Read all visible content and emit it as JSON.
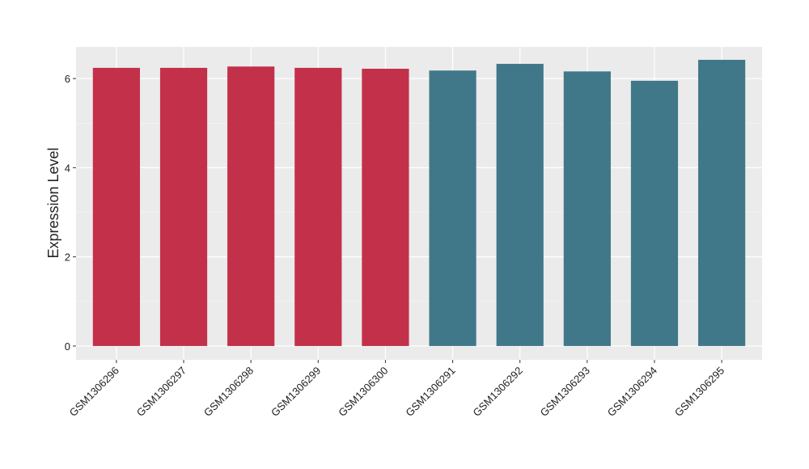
{
  "chart_data": {
    "type": "bar",
    "y_label": "Expression Level",
    "categories": [
      "GSM1306296",
      "GSM1306297",
      "GSM1306298",
      "GSM1306299",
      "GSM1306300",
      "GSM1306291",
      "GSM1306292",
      "GSM1306293",
      "GSM1306294",
      "GSM1306295"
    ],
    "values": [
      6.24,
      6.24,
      6.27,
      6.24,
      6.22,
      6.18,
      6.33,
      6.16,
      5.95,
      6.42
    ],
    "colors": [
      "#c3304a",
      "#c3304a",
      "#c3304a",
      "#c3304a",
      "#c3304a",
      "#417889",
      "#417889",
      "#417889",
      "#417889",
      "#417889"
    ],
    "ylim": [
      -0.31,
      6.71
    ],
    "yticks": [
      0,
      2,
      4,
      6
    ],
    "minor_yticks": [
      1,
      3,
      5
    ],
    "grid": true
  }
}
